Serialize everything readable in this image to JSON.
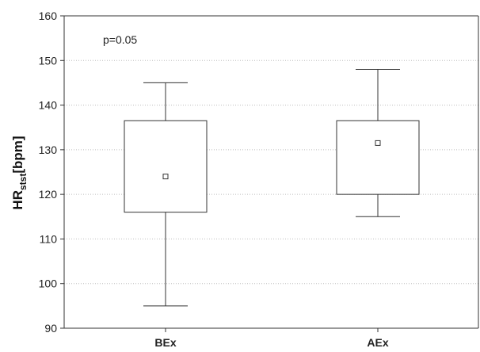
{
  "chart_data": {
    "type": "box",
    "categories": [
      "BEx",
      "AEx"
    ],
    "boxes": [
      {
        "category": "BEx",
        "whisker_low": 95,
        "q1": 116,
        "median": 124,
        "q3": 136.5,
        "whisker_high": 145
      },
      {
        "category": "AEx",
        "whisker_low": 115,
        "q1": 120,
        "median": 131.5,
        "q3": 136.5,
        "whisker_high": 148
      }
    ],
    "ylabel": {
      "main": "HR",
      "sub": "stst",
      "unit": "[bpm]"
    },
    "xlabel": "",
    "ylim": [
      90,
      160
    ],
    "yticks": [
      90,
      100,
      110,
      120,
      130,
      140,
      150,
      160
    ],
    "annotation": "p=0.05",
    "grid": "horizontal dotted",
    "legend": "none",
    "colors": {
      "box_fill": "#ffffff",
      "line": "#333333",
      "grid": "#bdbdbd"
    }
  }
}
